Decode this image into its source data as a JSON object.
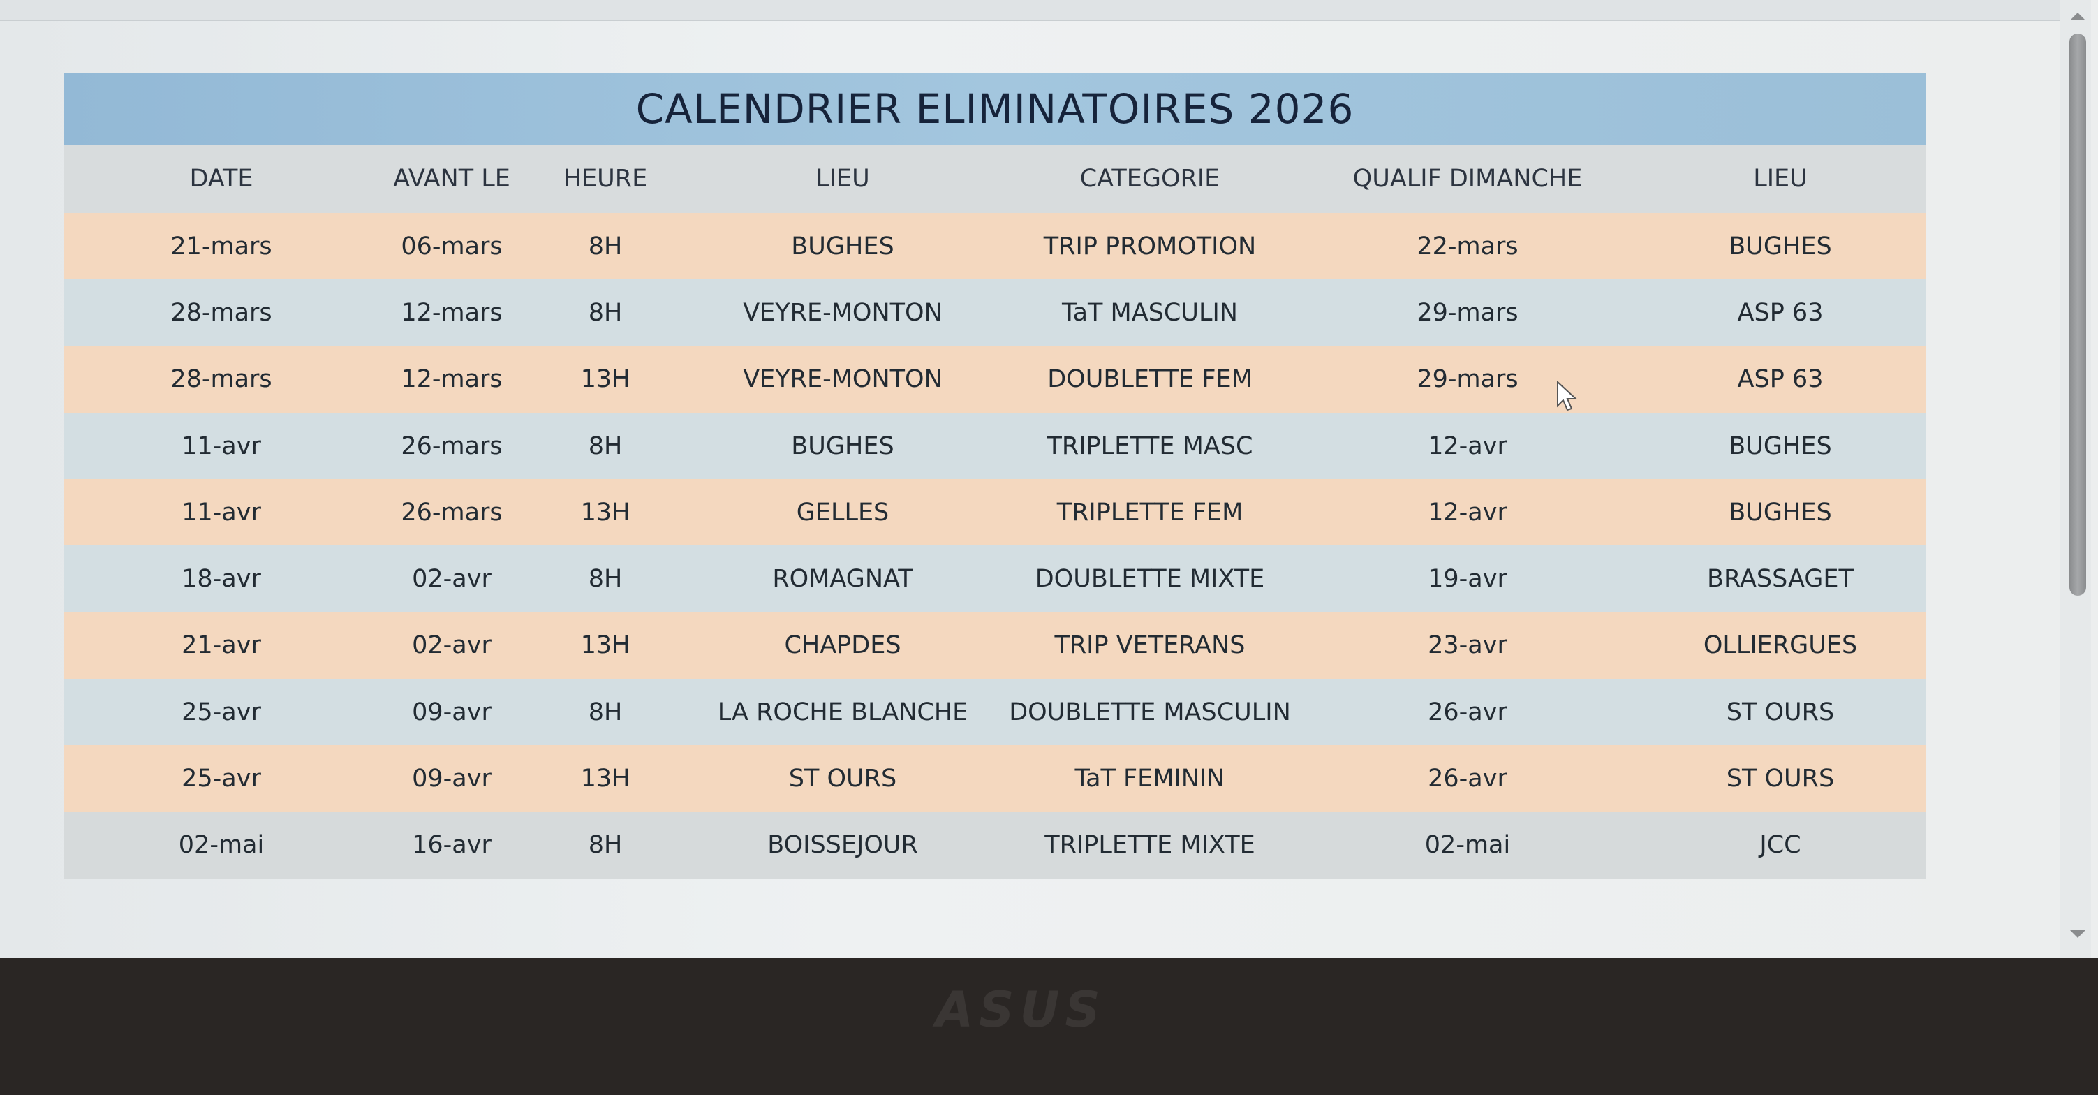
{
  "title": "CALENDRIER ELIMINATOIRES 2026",
  "columns": [
    "DATE",
    "AVANT LE",
    "HEURE",
    "LIEU",
    "CATEGORIE",
    "QUALIF DIMANCHE",
    "LIEU"
  ],
  "rows": [
    [
      "21-mars",
      "06-mars",
      "8H",
      "BUGHES",
      "TRIP PROMOTION",
      "22-mars",
      "BUGHES"
    ],
    [
      "28-mars",
      "12-mars",
      "8H",
      "VEYRE-MONTON",
      "TaT MASCULIN",
      "29-mars",
      "ASP 63"
    ],
    [
      "28-mars",
      "12-mars",
      "13H",
      "VEYRE-MONTON",
      "DOUBLETTE FEM",
      "29-mars",
      "ASP 63"
    ],
    [
      "11-avr",
      "26-mars",
      "8H",
      "BUGHES",
      "TRIPLETTE MASC",
      "12-avr",
      "BUGHES"
    ],
    [
      "11-avr",
      "26-mars",
      "13H",
      "GELLES",
      "TRIPLETTE FEM",
      "12-avr",
      "BUGHES"
    ],
    [
      "18-avr",
      "02-avr",
      "8H",
      "ROMAGNAT",
      "DOUBLETTE MIXTE",
      "19-avr",
      "BRASSAGET"
    ],
    [
      "21-avr",
      "02-avr",
      "13H",
      "CHAPDES",
      "TRIP VETERANS",
      "23-avr",
      "OLLIERGUES"
    ],
    [
      "25-avr",
      "09-avr",
      "8H",
      "LA ROCHE BLANCHE",
      "DOUBLETTE MASCULIN",
      "26-avr",
      "ST OURS"
    ],
    [
      "25-avr",
      "09-avr",
      "13H",
      "ST OURS",
      "TaT FEMININ",
      "26-avr",
      "ST OURS"
    ],
    [
      "02-mai",
      "16-avr",
      "8H",
      "BOISSEJOUR",
      "TRIPLETTE MIXTE",
      "02-mai",
      "JCC"
    ]
  ],
  "bezel_logo": "ASUS",
  "colors": {
    "title_band": "#9bbfd8",
    "row_peach": "#f4d8bf",
    "row_blue": "#d3dee2",
    "header_row": "#d8dcdd"
  }
}
